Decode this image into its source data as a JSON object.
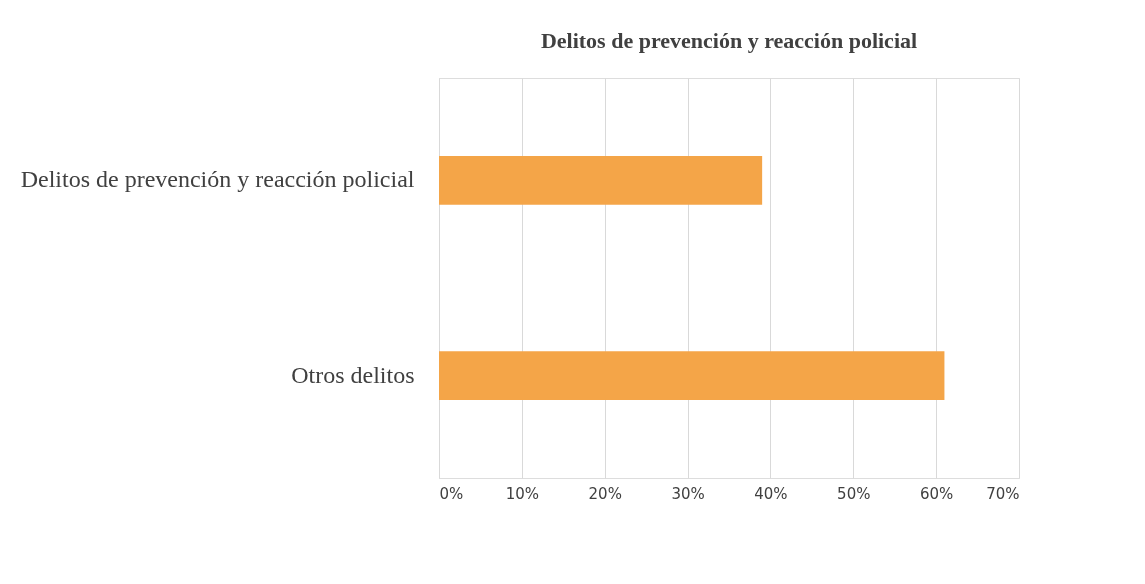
{
  "chart_data": {
    "type": "bar",
    "orientation": "horizontal",
    "title": "Delitos de prevención y reacción policial",
    "categories": [
      "Delitos de prevención y reacción policial",
      "Otros delitos"
    ],
    "values": [
      39,
      61
    ],
    "color": "#f4a548",
    "xlim": [
      0,
      70
    ],
    "xticks": [
      {
        "value": 0,
        "label": "0%"
      },
      {
        "value": 10,
        "label": "10%"
      },
      {
        "value": 20,
        "label": "20%"
      },
      {
        "value": 30,
        "label": "30%"
      },
      {
        "value": 40,
        "label": "40%"
      },
      {
        "value": 50,
        "label": "50%"
      },
      {
        "value": 60,
        "label": "60%"
      },
      {
        "value": 70,
        "label": "70%"
      }
    ],
    "grid": "x"
  }
}
